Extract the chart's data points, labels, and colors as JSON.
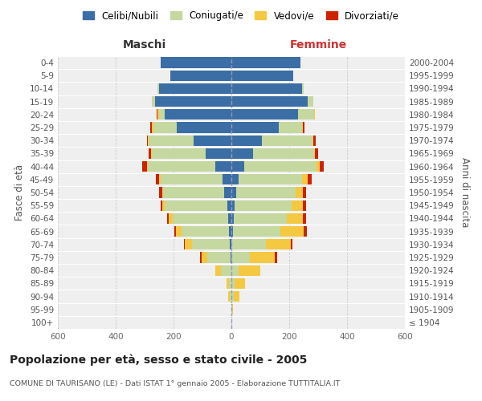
{
  "age_groups": [
    "100+",
    "95-99",
    "90-94",
    "85-89",
    "80-84",
    "75-79",
    "70-74",
    "65-69",
    "60-64",
    "55-59",
    "50-54",
    "45-49",
    "40-44",
    "35-39",
    "30-34",
    "25-29",
    "20-24",
    "15-19",
    "10-14",
    "5-9",
    "0-4"
  ],
  "birth_years": [
    "≤ 1904",
    "1905-1909",
    "1910-1914",
    "1915-1919",
    "1920-1924",
    "1925-1929",
    "1930-1934",
    "1935-1939",
    "1940-1944",
    "1945-1949",
    "1950-1954",
    "1955-1959",
    "1960-1964",
    "1965-1969",
    "1970-1974",
    "1975-1979",
    "1980-1984",
    "1985-1989",
    "1990-1994",
    "1995-1999",
    "2000-2004"
  ],
  "maschi_celibi": [
    0,
    0,
    0,
    0,
    0,
    3,
    5,
    8,
    12,
    15,
    25,
    30,
    55,
    90,
    130,
    190,
    230,
    265,
    250,
    210,
    245
  ],
  "maschi_coniugati": [
    0,
    0,
    5,
    8,
    35,
    80,
    130,
    165,
    190,
    215,
    210,
    215,
    235,
    185,
    155,
    80,
    20,
    10,
    5,
    0,
    0
  ],
  "maschi_vedovi": [
    0,
    0,
    5,
    8,
    20,
    20,
    25,
    20,
    15,
    10,
    5,
    5,
    3,
    3,
    3,
    5,
    5,
    0,
    0,
    0,
    0
  ],
  "maschi_divorziati": [
    0,
    0,
    0,
    0,
    0,
    5,
    3,
    3,
    5,
    5,
    10,
    10,
    15,
    8,
    5,
    5,
    3,
    0,
    0,
    0,
    0
  ],
  "femmine_nubili": [
    0,
    0,
    0,
    0,
    0,
    0,
    0,
    5,
    8,
    12,
    18,
    25,
    45,
    75,
    105,
    165,
    230,
    265,
    245,
    215,
    240
  ],
  "femmine_coniugate": [
    0,
    3,
    8,
    12,
    25,
    65,
    120,
    165,
    185,
    195,
    205,
    220,
    250,
    210,
    175,
    80,
    55,
    18,
    5,
    0,
    0
  ],
  "femmine_vedove": [
    0,
    3,
    20,
    35,
    75,
    85,
    85,
    80,
    55,
    40,
    25,
    20,
    10,
    5,
    3,
    3,
    3,
    0,
    0,
    0,
    0
  ],
  "femmine_divorziate": [
    0,
    0,
    0,
    0,
    0,
    8,
    5,
    10,
    10,
    10,
    10,
    12,
    15,
    10,
    8,
    5,
    0,
    0,
    0,
    0,
    0
  ],
  "color_celibi": "#3a6ea5",
  "color_coniugati": "#c5d8a0",
  "color_vedovi": "#f5c842",
  "color_divorziati": "#cc2200",
  "xlim_min": -600,
  "xlim_max": 600,
  "xticks": [
    -600,
    -400,
    -200,
    0,
    200,
    400,
    600
  ],
  "xticklabels": [
    "600",
    "400",
    "200",
    "0",
    "200",
    "400",
    "600"
  ],
  "title": "Popolazione per età, sesso e stato civile - 2005",
  "subtitle": "COMUNE DI TAURISANO (LE) - Dati ISTAT 1° gennaio 2005 - Elaborazione TUTTITALIA.IT",
  "ylabel_left": "Fasce di età",
  "ylabel_right": "Anni di nascita",
  "maschi_label": "Maschi",
  "femmine_label": "Femmine",
  "legend_labels": [
    "Celibi/Nubili",
    "Coniugati/e",
    "Vedovi/e",
    "Divorziati/e"
  ],
  "bg_color": "#ffffff",
  "plot_bg_color": "#efefef",
  "grid_color": "#cccccc"
}
